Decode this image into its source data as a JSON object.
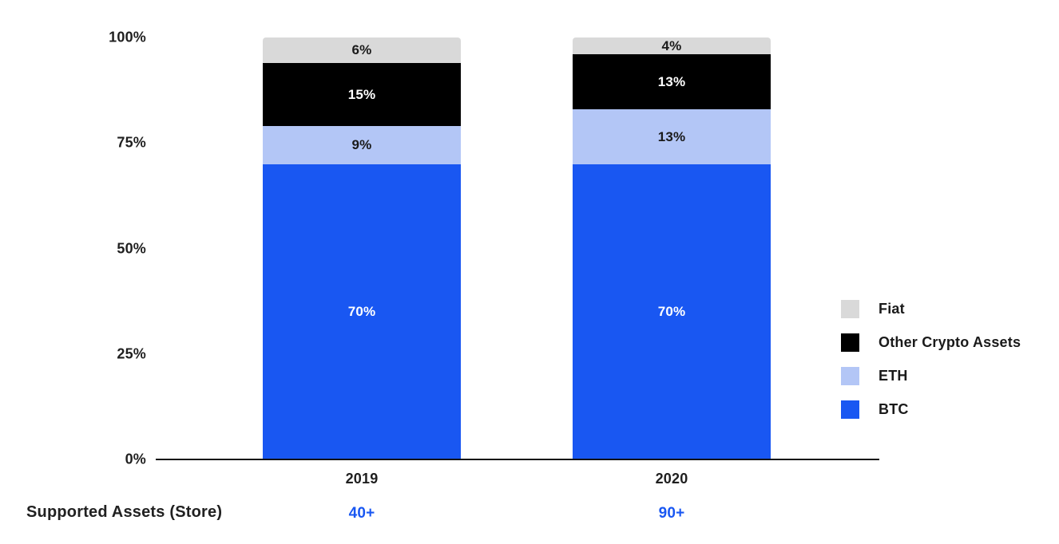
{
  "colors": {
    "accent_blue": "#1957f2",
    "eth_light_blue": "#b3c6f6",
    "fiat_gray": "#d9d9d9",
    "other_black": "#000000",
    "text_dark": "#1f1f1f",
    "axis_black": "#111111"
  },
  "chart_data": {
    "type": "bar",
    "subtype": "stacked-percentage-column",
    "title": "",
    "xlabel": "",
    "ylabel": "",
    "ylim": [
      0,
      100
    ],
    "grid": false,
    "legend_position": "right",
    "unit": "%",
    "categories": [
      "2019",
      "2020"
    ],
    "yticks": {
      "labels": [
        "100%",
        "75%",
        "50%",
        "25%",
        "0%"
      ],
      "values": [
        100,
        75,
        50,
        25,
        0
      ]
    },
    "series": [
      {
        "name": "Fiat",
        "color": "#d9d9d9",
        "label_color": "#1a1a1a",
        "values": [
          6,
          4
        ],
        "labels": [
          "6%",
          "4%"
        ]
      },
      {
        "name": "Other Crypto Assets",
        "color": "#000000",
        "label_color": "#ffffff",
        "values": [
          15,
          13
        ],
        "labels": [
          "15%",
          "13%"
        ]
      },
      {
        "name": "ETH",
        "color": "#b3c6f6",
        "label_color": "#1a1a1a",
        "values": [
          9,
          13
        ],
        "labels": [
          "9%",
          "13%"
        ]
      },
      {
        "name": "BTC",
        "color": "#1957f2",
        "label_color": "#ffffff",
        "values": [
          70,
          70
        ],
        "labels": [
          "70%",
          "70%"
        ]
      }
    ]
  },
  "footer": {
    "label": "Supported Assets (Store)",
    "values": [
      "40+",
      "90+"
    ],
    "value_color": "#1957f2"
  }
}
